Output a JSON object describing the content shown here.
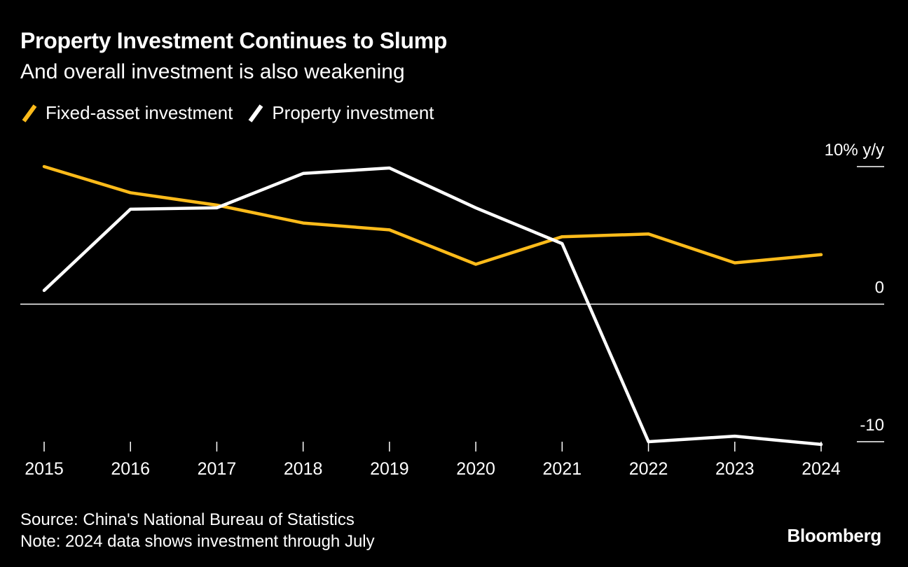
{
  "title": "Property Investment Continues to Slump",
  "subtitle": "And overall investment is also weakening",
  "colors": {
    "background": "#000000",
    "fixed_asset": "#FDBB1A",
    "property": "#FFFFFF",
    "text": "#FFFFFF"
  },
  "chart_data": {
    "type": "line",
    "title": "Property Investment Continues to Slump",
    "subtitle": "And overall investment is also weakening",
    "x": [
      "2015",
      "2016",
      "2017",
      "2018",
      "2019",
      "2020",
      "2021",
      "2022",
      "2023",
      "2024"
    ],
    "series": [
      {
        "name": "Fixed-asset investment",
        "color": "#FDBB1A",
        "values": [
          10.0,
          8.1,
          7.2,
          5.9,
          5.4,
          2.9,
          4.9,
          5.1,
          3.0,
          3.6
        ]
      },
      {
        "name": "Property investment",
        "color": "#FFFFFF",
        "values": [
          1.0,
          6.9,
          7.0,
          9.5,
          9.9,
          7.0,
          4.4,
          -10.0,
          -9.6,
          -10.2
        ]
      }
    ],
    "ylim": [
      -10,
      10
    ],
    "y_ticks": [
      {
        "value": 10,
        "label": "10% y/y"
      },
      {
        "value": 0,
        "label": "0"
      },
      {
        "value": -10,
        "label": "-10"
      }
    ],
    "zero_line": true,
    "grid": false,
    "legend": "top-left"
  },
  "footer": {
    "source": "Source: China's National Bureau of Statistics",
    "note": "Note: 2024 data shows investment through July",
    "brand": "Bloomberg"
  }
}
